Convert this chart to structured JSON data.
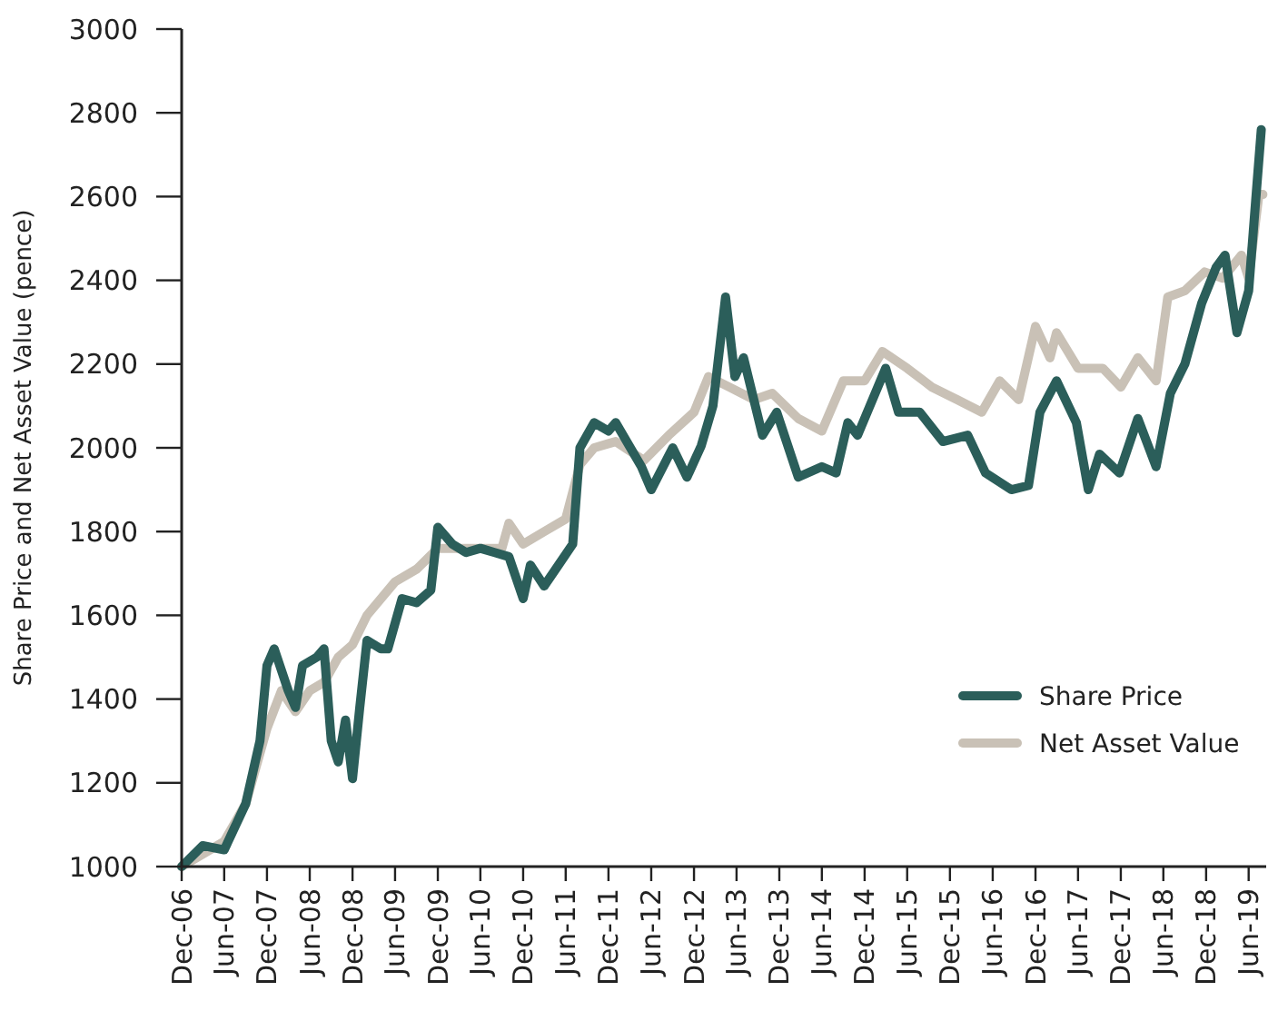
{
  "chart_data": {
    "type": "line",
    "ylabel": "Share Price and Net Asset Value (pence)",
    "x": [
      "2006-12",
      "2007-03",
      "2007-06",
      "2007-09",
      "2007-11",
      "2007-12",
      "2008-01",
      "2008-03",
      "2008-04",
      "2008-05",
      "2008-07",
      "2008-08",
      "2008-09",
      "2008-10",
      "2008-11",
      "2008-12",
      "2009-01",
      "2009-02",
      "2009-04",
      "2009-05",
      "2009-07",
      "2009-09",
      "2009-11",
      "2009-12",
      "2010-02",
      "2010-04",
      "2010-06",
      "2010-08",
      "2010-10",
      "2010-12",
      "2011-01",
      "2011-03",
      "2011-05",
      "2011-07",
      "2011-08",
      "2011-10",
      "2011-12",
      "2012-01",
      "2012-04-20",
      "2012-06",
      "2012-09",
      "2012-11",
      "2013-01",
      "2013-02-20",
      "2013-04-15",
      "2013-05-25",
      "2013-07",
      "2013-09-20",
      "2013-11-20",
      "2014-02-20",
      "2014-06",
      "2014-08",
      "2014-09-20",
      "2014-11",
      "2015-03",
      "2015-04-25",
      "2015-07-25",
      "2015-11",
      "2016-02-15",
      "2016-05",
      "2016-08-20",
      "2016-11",
      "2016-12-20",
      "2017-03",
      "2017-05-25",
      "2017-07-15",
      "2017-09",
      "2017-11-25",
      "2018-02-12",
      "2018-05",
      "2018-07",
      "2018-09",
      "2018-11-12",
      "2019-01-12",
      "2019-02-20",
      "2019-04-12",
      "2019-06",
      "2019-07",
      "2019-07-25"
    ],
    "series": [
      {
        "name": "Share Price",
        "color": "#2b5e5a",
        "values": [
          1000,
          1050,
          1040,
          1150,
          1300,
          1480,
          1520,
          1420,
          1380,
          1480,
          1500,
          1520,
          1300,
          1250,
          1350,
          1210,
          1380,
          1540,
          1520,
          1520,
          1640,
          1630,
          1660,
          1810,
          1770,
          1750,
          1760,
          1750,
          1740,
          1640,
          1720,
          1670,
          1720,
          1770,
          2000,
          2060,
          2040,
          2060,
          1955,
          1900,
          2000,
          1930,
          2005,
          2100,
          2360,
          2170,
          2215,
          2030,
          2085,
          1930,
          1955,
          1940,
          2060,
          2030,
          2190,
          2085,
          2085,
          2015,
          2030,
          1940,
          1900,
          1910,
          2085,
          2160,
          2060,
          1900,
          1985,
          1940,
          2070,
          1955,
          2130,
          2200,
          2345,
          2430,
          2460,
          2275,
          2375,
          2590,
          2760
        ]
      },
      {
        "name": "Net Asset Value",
        "color": "#c9c1b6",
        "x": [
          "2006-12",
          "2007-06",
          "2007-09",
          "2007-12",
          "2008-02",
          "2008-04",
          "2008-06",
          "2008-08",
          "2008-10",
          "2008-12",
          "2009-02",
          "2009-06",
          "2009-09",
          "2009-12",
          "2010-03",
          "2010-06",
          "2010-09",
          "2010-10",
          "2010-12",
          "2011-03",
          "2011-06",
          "2011-08",
          "2011-10",
          "2011-12",
          "2012-01",
          "2012-05",
          "2012-08-15",
          "2012-12",
          "2013-02",
          "2013-05",
          "2013-08-15",
          "2013-11",
          "2014-02-20",
          "2014-06",
          "2014-09",
          "2014-12",
          "2015-02-15",
          "2015-06",
          "2015-09-15",
          "2016-01",
          "2016-04-15",
          "2016-07",
          "2016-09-20",
          "2016-12",
          "2017-02",
          "2017-03",
          "2017-06",
          "2017-09-15",
          "2017-12",
          "2018-02-12",
          "2018-05",
          "2018-06-20",
          "2018-09",
          "2018-11-25",
          "2019-02-10",
          "2019-05",
          "2019-06",
          "2019-07-15",
          "2019-08"
        ],
        "values": [
          1000,
          1060,
          1150,
          1330,
          1420,
          1370,
          1420,
          1440,
          1500,
          1530,
          1600,
          1680,
          1710,
          1760,
          1760,
          1760,
          1760,
          1820,
          1770,
          1800,
          1830,
          1960,
          2000,
          2010,
          2015,
          1970,
          2030,
          2085,
          2170,
          2145,
          2115,
          2130,
          2070,
          2040,
          2160,
          2160,
          2230,
          2190,
          2145,
          2115,
          2085,
          2160,
          2115,
          2290,
          2215,
          2275,
          2190,
          2190,
          2145,
          2215,
          2160,
          2360,
          2375,
          2420,
          2405,
          2460,
          2405,
          2605,
          2605
        ]
      }
    ],
    "xlim": [
      "2006-12",
      "2019-08-15"
    ],
    "xticks": [
      {
        "value": "2006-12",
        "label": "Dec-06"
      },
      {
        "value": "2007-06",
        "label": "Jun-07"
      },
      {
        "value": "2007-12",
        "label": "Dec-07"
      },
      {
        "value": "2008-06",
        "label": "Jun-08"
      },
      {
        "value": "2008-12",
        "label": "Dec-08"
      },
      {
        "value": "2009-06",
        "label": "Jun-09"
      },
      {
        "value": "2009-12",
        "label": "Dec-09"
      },
      {
        "value": "2010-06",
        "label": "Jun-10"
      },
      {
        "value": "2010-12",
        "label": "Dec-10"
      },
      {
        "value": "2011-06",
        "label": "Jun-11"
      },
      {
        "value": "2011-12",
        "label": "Dec-11"
      },
      {
        "value": "2012-06",
        "label": "Jun-12"
      },
      {
        "value": "2012-12",
        "label": "Dec-12"
      },
      {
        "value": "2013-06",
        "label": "Jun-13"
      },
      {
        "value": "2013-12",
        "label": "Dec-13"
      },
      {
        "value": "2014-06",
        "label": "Jun-14"
      },
      {
        "value": "2014-12",
        "label": "Dec-14"
      },
      {
        "value": "2015-06",
        "label": "Jun-15"
      },
      {
        "value": "2015-12",
        "label": "Dec-15"
      },
      {
        "value": "2016-06",
        "label": "Jun-16"
      },
      {
        "value": "2016-12",
        "label": "Dec-16"
      },
      {
        "value": "2017-06",
        "label": "Jun-17"
      },
      {
        "value": "2017-12",
        "label": "Dec-17"
      },
      {
        "value": "2018-06",
        "label": "Jun-18"
      },
      {
        "value": "2018-12",
        "label": "Dec-18"
      },
      {
        "value": "2019-06",
        "label": "Jun-19"
      }
    ],
    "ylim": [
      1000,
      3000
    ],
    "yticks": [
      1000,
      1200,
      1400,
      1600,
      1800,
      2000,
      2200,
      2400,
      2600,
      2800,
      3000
    ],
    "legend": "bottom right",
    "grid": false,
    "marker": "none",
    "line_style": "solid"
  }
}
